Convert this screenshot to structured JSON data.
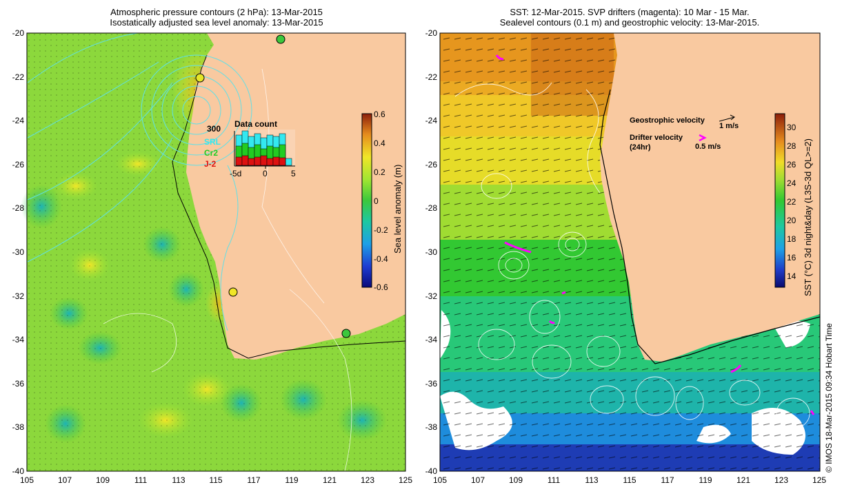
{
  "left_panel": {
    "title_line1": "Atmospheric pressure contours (2 hPa): 13-Mar-2015",
    "title_line2": "Isostatically adjusted sea level anomaly: 13-Mar-2015",
    "colorbar_label": "Sea level anomaly (m)",
    "colorbar_ticks": [
      "0.6",
      "0.4",
      "0.2",
      "0",
      "-0.2",
      "-0.4",
      "-0.6"
    ],
    "inset": {
      "title": "Data count",
      "max_label": "300",
      "series": [
        "SRL",
        "Cr2",
        "J-2"
      ],
      "x_ticks": [
        "-5d",
        "0",
        "5"
      ]
    }
  },
  "right_panel": {
    "title_line1": "SST: 12-Mar-2015. SVP drifters (magenta): 10 Mar - 15 Mar.",
    "title_line2": "Sealevel contours (0.1 m) and geostrophic velocity: 13-Mar-2015.",
    "colorbar_label": "SST (°C) 3d night&day (L3S-3d QL>=2)",
    "colorbar_ticks": [
      "30",
      "28",
      "26",
      "24",
      "22",
      "20",
      "18",
      "16",
      "14"
    ],
    "legend": {
      "geo_label": "Geostrophic velocity",
      "geo_scale": "1 m/s",
      "drifter_label_1": "Drifter velocity",
      "drifter_label_2": "(24hr)",
      "drifter_scale": "0.5 m/s"
    }
  },
  "axes": {
    "y_ticks": [
      "-20",
      "-22",
      "-24",
      "-26",
      "-28",
      "-30",
      "-32",
      "-34",
      "-36",
      "-38",
      "-40"
    ],
    "x_ticks": [
      "105",
      "107",
      "109",
      "111",
      "113",
      "115",
      "117",
      "119",
      "121",
      "123",
      "125"
    ]
  },
  "credit": "© IMOS 18-Mar-2015 09:34 Hobart Time",
  "colors": {
    "land": "#f9c9a0",
    "drifter": "#ff00ff",
    "pressure_contour": "#5fe0e8"
  }
}
